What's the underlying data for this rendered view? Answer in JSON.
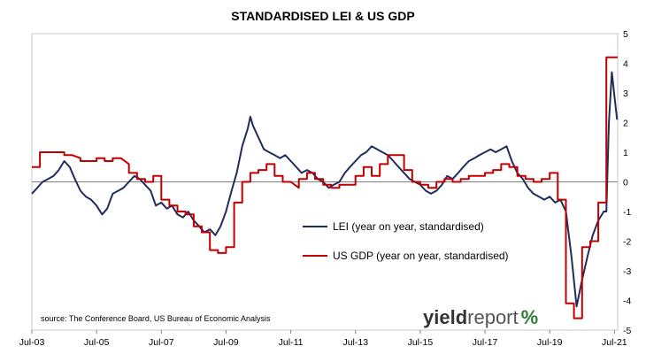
{
  "chart_data": {
    "type": "line",
    "title": "STANDARDISED LEI & US GDP",
    "xlim": [
      2003.5,
      2021.6
    ],
    "ylim": [
      -5,
      5
    ],
    "ytick_step": 1,
    "xticks": [
      {
        "label": "Jul-03",
        "value": 2003.5
      },
      {
        "label": "Jul-05",
        "value": 2005.5
      },
      {
        "label": "Jul-07",
        "value": 2007.5
      },
      {
        "label": "Jul-09",
        "value": 2009.5
      },
      {
        "label": "Jul-11",
        "value": 2011.5
      },
      {
        "label": "Jul-13",
        "value": 2013.5
      },
      {
        "label": "Jul-15",
        "value": 2015.5
      },
      {
        "label": "Jul-17",
        "value": 2017.5
      },
      {
        "label": "Jul-19",
        "value": 2019.5
      },
      {
        "label": "Jul-21",
        "value": 2021.5
      }
    ],
    "legend_position": "center-right",
    "grid": false,
    "source": "source: The Conference Board, US Bureau of Economic Analysis",
    "series": [
      {
        "name": "LEI (year on year, standardised)",
        "color": "#1f2d5c",
        "points": [
          [
            2003.5,
            -0.4
          ],
          [
            2003.67,
            -0.2
          ],
          [
            2003.83,
            0.0
          ],
          [
            2004.0,
            0.1
          ],
          [
            2004.17,
            0.2
          ],
          [
            2004.33,
            0.4
          ],
          [
            2004.5,
            0.7
          ],
          [
            2004.67,
            0.5
          ],
          [
            2004.83,
            0.1
          ],
          [
            2005.0,
            -0.3
          ],
          [
            2005.17,
            -0.5
          ],
          [
            2005.33,
            -0.6
          ],
          [
            2005.5,
            -0.8
          ],
          [
            2005.67,
            -1.1
          ],
          [
            2005.83,
            -0.9
          ],
          [
            2006.0,
            -0.4
          ],
          [
            2006.17,
            -0.3
          ],
          [
            2006.33,
            -0.2
          ],
          [
            2006.5,
            0.0
          ],
          [
            2006.67,
            0.2
          ],
          [
            2006.83,
            0.1
          ],
          [
            2007.0,
            -0.1
          ],
          [
            2007.17,
            -0.3
          ],
          [
            2007.33,
            -0.8
          ],
          [
            2007.5,
            -0.7
          ],
          [
            2007.67,
            -0.9
          ],
          [
            2007.83,
            -0.8
          ],
          [
            2008.0,
            -1.1
          ],
          [
            2008.17,
            -1.2
          ],
          [
            2008.33,
            -1.0
          ],
          [
            2008.5,
            -1.3
          ],
          [
            2008.67,
            -1.5
          ],
          [
            2008.83,
            -1.7
          ],
          [
            2009.0,
            -1.6
          ],
          [
            2009.17,
            -1.8
          ],
          [
            2009.33,
            -1.5
          ],
          [
            2009.5,
            -1.0
          ],
          [
            2009.67,
            -0.3
          ],
          [
            2009.83,
            0.3
          ],
          [
            2010.0,
            1.2
          ],
          [
            2010.17,
            1.8
          ],
          [
            2010.25,
            2.2
          ],
          [
            2010.33,
            1.9
          ],
          [
            2010.5,
            1.5
          ],
          [
            2010.67,
            1.1
          ],
          [
            2010.83,
            1.0
          ],
          [
            2011.0,
            0.9
          ],
          [
            2011.17,
            0.8
          ],
          [
            2011.33,
            0.9
          ],
          [
            2011.5,
            0.7
          ],
          [
            2011.67,
            0.5
          ],
          [
            2011.83,
            0.3
          ],
          [
            2012.0,
            0.4
          ],
          [
            2012.17,
            0.3
          ],
          [
            2012.33,
            0.1
          ],
          [
            2012.5,
            0.0
          ],
          [
            2012.67,
            -0.2
          ],
          [
            2012.83,
            -0.1
          ],
          [
            2013.0,
            0.0
          ],
          [
            2013.17,
            0.3
          ],
          [
            2013.33,
            0.5
          ],
          [
            2013.5,
            0.7
          ],
          [
            2013.67,
            0.9
          ],
          [
            2013.83,
            1.0
          ],
          [
            2014.0,
            1.2
          ],
          [
            2014.17,
            1.1
          ],
          [
            2014.33,
            1.0
          ],
          [
            2014.5,
            0.9
          ],
          [
            2014.67,
            0.7
          ],
          [
            2014.83,
            0.5
          ],
          [
            2015.0,
            0.3
          ],
          [
            2015.17,
            0.1
          ],
          [
            2015.33,
            0.0
          ],
          [
            2015.5,
            -0.1
          ],
          [
            2015.67,
            -0.3
          ],
          [
            2015.83,
            -0.4
          ],
          [
            2016.0,
            -0.3
          ],
          [
            2016.17,
            -0.1
          ],
          [
            2016.33,
            0.2
          ],
          [
            2016.5,
            0.1
          ],
          [
            2016.67,
            0.3
          ],
          [
            2016.83,
            0.5
          ],
          [
            2017.0,
            0.7
          ],
          [
            2017.17,
            0.8
          ],
          [
            2017.33,
            0.9
          ],
          [
            2017.5,
            1.0
          ],
          [
            2017.67,
            1.1
          ],
          [
            2017.83,
            1.0
          ],
          [
            2018.0,
            1.1
          ],
          [
            2018.17,
            1.2
          ],
          [
            2018.33,
            0.7
          ],
          [
            2018.5,
            0.3
          ],
          [
            2018.67,
            0.1
          ],
          [
            2018.83,
            -0.2
          ],
          [
            2019.0,
            -0.4
          ],
          [
            2019.17,
            -0.5
          ],
          [
            2019.33,
            -0.6
          ],
          [
            2019.5,
            -0.5
          ],
          [
            2019.67,
            -0.7
          ],
          [
            2019.83,
            -0.6
          ],
          [
            2020.0,
            -1.0
          ],
          [
            2020.17,
            -2.5
          ],
          [
            2020.33,
            -4.2
          ],
          [
            2020.5,
            -3.3
          ],
          [
            2020.67,
            -2.5
          ],
          [
            2020.83,
            -1.8
          ],
          [
            2021.0,
            -1.3
          ],
          [
            2021.17,
            -1.0
          ],
          [
            2021.25,
            -1.0
          ],
          [
            2021.33,
            2.0
          ],
          [
            2021.42,
            3.7
          ],
          [
            2021.5,
            2.9
          ],
          [
            2021.58,
            2.1
          ]
        ]
      },
      {
        "name": "US GDP (year on year, standardised)",
        "color": "#c00000",
        "points": [
          [
            2003.5,
            0.5
          ],
          [
            2003.75,
            0.5
          ],
          [
            2003.75,
            1.0
          ],
          [
            2004.0,
            1.0
          ],
          [
            2004.25,
            1.0
          ],
          [
            2004.5,
            1.0
          ],
          [
            2004.5,
            0.9
          ],
          [
            2004.75,
            0.9
          ],
          [
            2005.0,
            0.8
          ],
          [
            2005.0,
            0.7
          ],
          [
            2005.25,
            0.7
          ],
          [
            2005.5,
            0.7
          ],
          [
            2005.5,
            0.8
          ],
          [
            2005.75,
            0.8
          ],
          [
            2005.75,
            0.7
          ],
          [
            2006.0,
            0.7
          ],
          [
            2006.0,
            0.8
          ],
          [
            2006.25,
            0.8
          ],
          [
            2006.5,
            0.6
          ],
          [
            2006.5,
            0.3
          ],
          [
            2006.75,
            0.3
          ],
          [
            2006.75,
            0.1
          ],
          [
            2007.0,
            0.1
          ],
          [
            2007.0,
            0.0
          ],
          [
            2007.25,
            0.0
          ],
          [
            2007.25,
            0.2
          ],
          [
            2007.5,
            0.2
          ],
          [
            2007.5,
            -0.6
          ],
          [
            2007.75,
            -0.6
          ],
          [
            2007.75,
            -0.8
          ],
          [
            2008.0,
            -0.8
          ],
          [
            2008.0,
            -1.0
          ],
          [
            2008.25,
            -1.0
          ],
          [
            2008.25,
            -1.1
          ],
          [
            2008.5,
            -1.1
          ],
          [
            2008.5,
            -1.5
          ],
          [
            2008.75,
            -1.5
          ],
          [
            2008.75,
            -1.7
          ],
          [
            2009.0,
            -1.7
          ],
          [
            2009.0,
            -2.3
          ],
          [
            2009.25,
            -2.3
          ],
          [
            2009.25,
            -2.4
          ],
          [
            2009.5,
            -2.4
          ],
          [
            2009.5,
            -2.2
          ],
          [
            2009.75,
            -2.2
          ],
          [
            2009.75,
            -0.7
          ],
          [
            2010.0,
            -0.7
          ],
          [
            2010.0,
            0.0
          ],
          [
            2010.25,
            0.0
          ],
          [
            2010.25,
            0.3
          ],
          [
            2010.5,
            0.3
          ],
          [
            2010.5,
            0.4
          ],
          [
            2010.75,
            0.4
          ],
          [
            2010.75,
            0.6
          ],
          [
            2011.0,
            0.6
          ],
          [
            2011.0,
            0.2
          ],
          [
            2011.25,
            0.2
          ],
          [
            2011.25,
            0.0
          ],
          [
            2011.5,
            0.0
          ],
          [
            2011.75,
            -0.2
          ],
          [
            2011.75,
            0.1
          ],
          [
            2012.0,
            0.1
          ],
          [
            2012.0,
            0.3
          ],
          [
            2012.25,
            0.3
          ],
          [
            2012.25,
            0.1
          ],
          [
            2012.5,
            0.1
          ],
          [
            2012.5,
            -0.1
          ],
          [
            2012.75,
            -0.1
          ],
          [
            2012.75,
            -0.2
          ],
          [
            2013.0,
            -0.2
          ],
          [
            2013.0,
            -0.1
          ],
          [
            2013.25,
            -0.1
          ],
          [
            2013.5,
            -0.1
          ],
          [
            2013.5,
            0.2
          ],
          [
            2013.75,
            0.2
          ],
          [
            2013.75,
            0.5
          ],
          [
            2014.0,
            0.5
          ],
          [
            2014.0,
            0.2
          ],
          [
            2014.25,
            0.2
          ],
          [
            2014.25,
            0.6
          ],
          [
            2014.5,
            0.6
          ],
          [
            2014.5,
            0.9
          ],
          [
            2014.75,
            0.9
          ],
          [
            2015.0,
            0.9
          ],
          [
            2015.0,
            0.4
          ],
          [
            2015.25,
            0.4
          ],
          [
            2015.25,
            0.0
          ],
          [
            2015.5,
            0.0
          ],
          [
            2015.5,
            -0.1
          ],
          [
            2015.75,
            -0.1
          ],
          [
            2015.75,
            -0.2
          ],
          [
            2016.0,
            -0.2
          ],
          [
            2016.0,
            0.0
          ],
          [
            2016.25,
            0.0
          ],
          [
            2016.25,
            0.1
          ],
          [
            2016.5,
            0.1
          ],
          [
            2016.5,
            0.0
          ],
          [
            2016.75,
            0.0
          ],
          [
            2016.75,
            0.1
          ],
          [
            2017.0,
            0.1
          ],
          [
            2017.0,
            0.2
          ],
          [
            2017.25,
            0.2
          ],
          [
            2017.5,
            0.2
          ],
          [
            2017.5,
            0.3
          ],
          [
            2017.75,
            0.3
          ],
          [
            2017.75,
            0.4
          ],
          [
            2018.0,
            0.4
          ],
          [
            2018.0,
            0.6
          ],
          [
            2018.25,
            0.6
          ],
          [
            2018.25,
            0.5
          ],
          [
            2018.5,
            0.5
          ],
          [
            2018.5,
            0.2
          ],
          [
            2018.75,
            0.2
          ],
          [
            2018.75,
            0.1
          ],
          [
            2019.0,
            0.1
          ],
          [
            2019.0,
            0.0
          ],
          [
            2019.25,
            0.0
          ],
          [
            2019.25,
            0.1
          ],
          [
            2019.5,
            0.1
          ],
          [
            2019.5,
            0.3
          ],
          [
            2019.75,
            0.3
          ],
          [
            2019.75,
            -0.6
          ],
          [
            2020.0,
            -0.6
          ],
          [
            2020.0,
            -4.1
          ],
          [
            2020.25,
            -4.1
          ],
          [
            2020.25,
            -4.6
          ],
          [
            2020.5,
            -4.6
          ],
          [
            2020.5,
            -2.2
          ],
          [
            2020.75,
            -2.2
          ],
          [
            2020.75,
            -2.0
          ],
          [
            2021.0,
            -2.0
          ],
          [
            2021.0,
            -0.7
          ],
          [
            2021.25,
            -0.7
          ],
          [
            2021.25,
            4.2
          ],
          [
            2021.5,
            4.2
          ],
          [
            2021.6,
            4.2
          ]
        ]
      }
    ]
  },
  "branding": {
    "part_a": "yield",
    "part_b": "report",
    "part_c": "%"
  }
}
